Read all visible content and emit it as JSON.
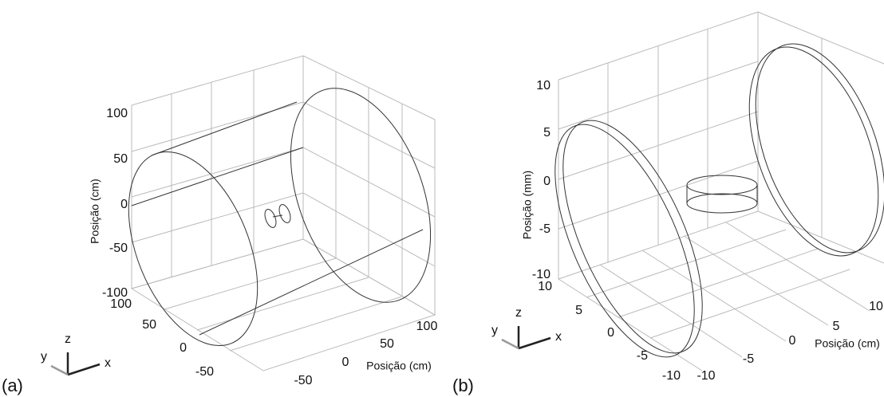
{
  "panels": [
    {
      "label": "(a)",
      "z_label": "Posição (cm)",
      "x_label": "Posição (cm)",
      "z_ticks": [
        "100",
        "50",
        "0",
        "-50",
        "-100"
      ],
      "y_ticks": [
        "100",
        "50",
        "0",
        "-50"
      ],
      "x_ticks": [
        "100",
        "50",
        "0",
        "-50"
      ],
      "triad": {
        "z": "z",
        "y": "y",
        "x": "x"
      }
    },
    {
      "label": "(b)",
      "z_label": "Posição (mm)",
      "x_label": "Posição (cm)",
      "z_ticks": [
        "10",
        "5",
        "0",
        "-5",
        "-10"
      ],
      "y_ticks": [
        "10",
        "5",
        "0",
        "-5",
        "-10"
      ],
      "x_ticks": [
        "10",
        "5",
        "0",
        "-5",
        "-10"
      ],
      "triad": {
        "z": "z",
        "y": "y",
        "x": "x"
      }
    }
  ]
}
